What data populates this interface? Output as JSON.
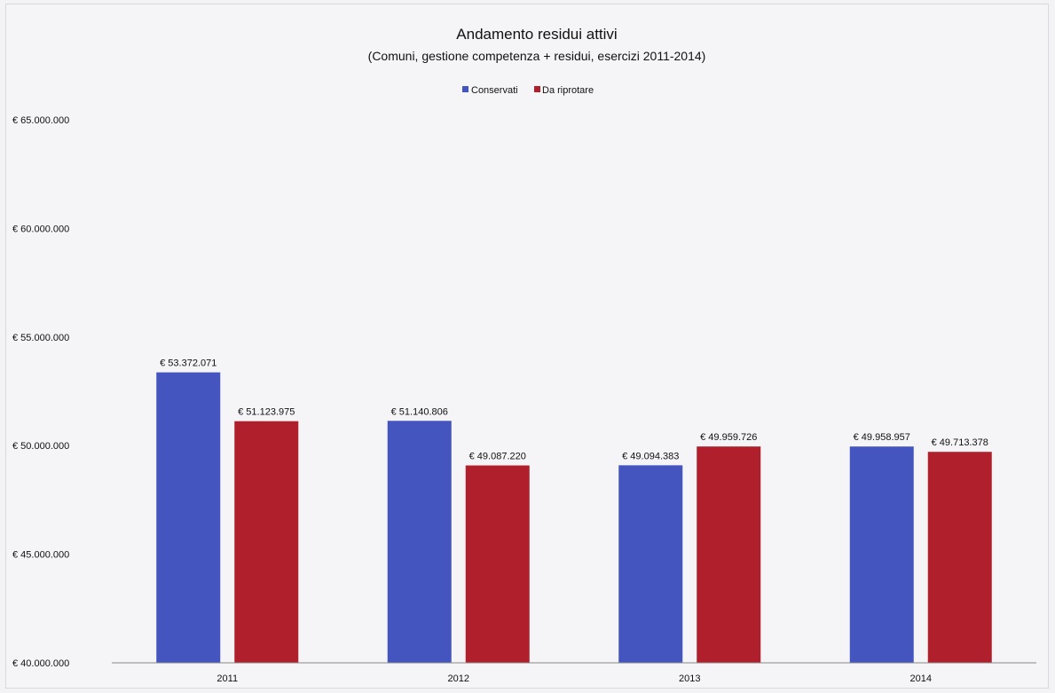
{
  "chart_data": {
    "type": "bar",
    "title": "Andamento residui attivi",
    "subtitle": "(Comuni, gestione competenza + residui, esercizi 2011-2014)",
    "categories": [
      "2011",
      "2012",
      "2013",
      "2014"
    ],
    "series": [
      {
        "name": "Conservati",
        "color": "#4455bf",
        "values": [
          53372071,
          51140806,
          49094383,
          49958957
        ],
        "labels": [
          "€ 53.372.071",
          "€ 51.140.806",
          "€ 49.094.383",
          "€ 49.958.957"
        ]
      },
      {
        "name": "Da riprotare",
        "color": "#b0202c",
        "values": [
          51123975,
          49087220,
          49959726,
          49713378
        ],
        "labels": [
          "€ 51.123.975",
          "€ 49.087.220",
          "€ 49.959.726",
          "€ 49.713.378"
        ]
      }
    ],
    "ylim": [
      40000000,
      65000000
    ],
    "yticks": [
      40000000,
      45000000,
      50000000,
      55000000,
      60000000,
      65000000
    ],
    "ytick_labels": [
      "€ 40.000.000",
      "€ 45.000.000",
      "€ 50.000.000",
      "€ 55.000.000",
      "€ 60.000.000",
      "€ 65.000.000"
    ],
    "legend_position": "top-center",
    "grid": false
  }
}
